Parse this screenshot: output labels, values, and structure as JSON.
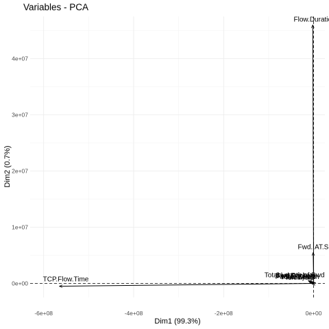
{
  "chart_data": {
    "type": "scatter",
    "title": "Variables - PCA",
    "xlabel": "Dim1 (99.3%)",
    "ylabel": "Dim2 (0.7%)",
    "xlim": [
      -630000000,
      25000000
    ],
    "ylim": [
      -2500000,
      47500000
    ],
    "x_ticks": [
      {
        "value": -600000000,
        "label": "-6e+08"
      },
      {
        "value": -400000000,
        "label": "-4e+08"
      },
      {
        "value": -200000000,
        "label": "-2e+08"
      },
      {
        "value": 0,
        "label": "0e+00"
      }
    ],
    "y_ticks": [
      {
        "value": 0,
        "label": "0e+00"
      },
      {
        "value": 10000000,
        "label": "1e+07"
      },
      {
        "value": 20000000,
        "label": "2e+07"
      },
      {
        "value": 30000000,
        "label": "3e+07"
      },
      {
        "value": 40000000,
        "label": "4e+07"
      }
    ],
    "grid": true,
    "origin_lines": "dashed",
    "variables": [
      {
        "label": "TCP.Flow.Time",
        "x": -565000000,
        "y": -500000
      },
      {
        "label": "Flow.Duratio",
        "x": -2000000,
        "y": 46000000
      },
      {
        "label": "Fwd.IAT.S",
        "x": -1000000,
        "y": 5500000
      },
      {
        "label": "Total.Length.of.Bwd",
        "x": -12000000,
        "y": 500000
      },
      {
        "label": "Bwd.Packets",
        "x": -10000000,
        "y": 400000
      },
      {
        "label": "Fwd.Packets",
        "x": -8000000,
        "y": 300000
      },
      {
        "label": "Packet.Length",
        "x": -6000000,
        "y": 200000
      },
      {
        "label": "Flow.Bytes",
        "x": -4000000,
        "y": 100000
      },
      {
        "label": "Idle.Max",
        "x": -2000000,
        "y": 50000
      }
    ]
  }
}
